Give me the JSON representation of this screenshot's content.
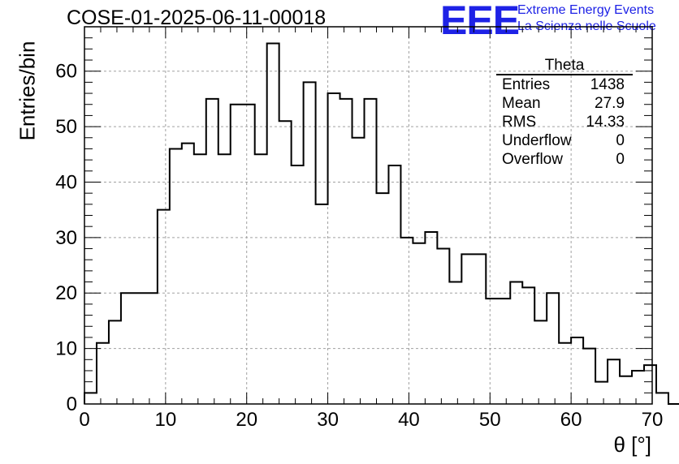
{
  "title": "COSE-01-2025-06-11-00018",
  "logo": {
    "mark": "EEE",
    "line1": "Extreme Energy Events",
    "line2": "La Scienza nelle Scuole"
  },
  "stats": {
    "name": "Theta",
    "rows": [
      {
        "label": "Entries",
        "value": "1438"
      },
      {
        "label": "Mean",
        "value": "27.9"
      },
      {
        "label": "RMS",
        "value": "14.33"
      },
      {
        "label": "Underflow",
        "value": "0"
      },
      {
        "label": "Overflow",
        "value": "0"
      }
    ]
  },
  "colors": {
    "logo": "#1e22e6",
    "line": "#000000",
    "grid": "#a0a0a0"
  },
  "chart_data": {
    "type": "bar",
    "histogram": true,
    "xlabel": "θ [°]",
    "ylabel": "Entries/bin",
    "xlim": [
      0,
      70
    ],
    "ylim": [
      0,
      68
    ],
    "bin_width": 1.5,
    "bin_edges_start": 0,
    "values": [
      2,
      11,
      15,
      20,
      20,
      20,
      35,
      46,
      47,
      45,
      55,
      45,
      54,
      54,
      45,
      65,
      51,
      43,
      58,
      36,
      56,
      55,
      48,
      55,
      38,
      43,
      30,
      29,
      31,
      28,
      22,
      27,
      27,
      19,
      19,
      22,
      21,
      15,
      20,
      11,
      12,
      10,
      4,
      8,
      5,
      6,
      7,
      2,
      0
    ],
    "x_ticks": [
      0,
      10,
      20,
      30,
      40,
      50,
      60,
      70
    ],
    "y_ticks": [
      0,
      10,
      20,
      30,
      40,
      50,
      60
    ],
    "grid": true
  }
}
